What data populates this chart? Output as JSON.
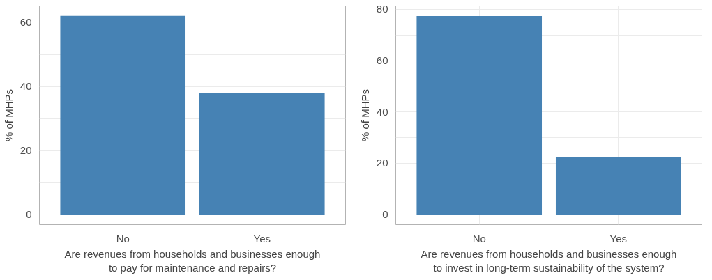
{
  "chart_data": [
    {
      "type": "bar",
      "categories": [
        "No",
        "Yes"
      ],
      "values": [
        62,
        38
      ],
      "color": "#4682b4",
      "xlabel": "Are revenues from households and businesses enough\nto pay for maintenance and repairs?",
      "ylabel": "% of MHPs",
      "ylim": [
        -3.1,
        65.1
      ],
      "yticks": [
        0,
        {
          "value": 10,
          "label": null
        },
        20,
        {
          "value": 30,
          "label": null
        },
        40,
        {
          "value": 50,
          "label": null
        },
        60
      ],
      "grid": true
    },
    {
      "type": "bar",
      "categories": [
        "No",
        "Yes"
      ],
      "values": [
        77.4,
        22.6
      ],
      "color": "#4682b4",
      "xlabel": "Are revenues from households and businesses enough\nto invest in long-term sustainability of the system?",
      "ylabel": "% of MHPs",
      "ylim": [
        -3.87,
        81.3
      ],
      "yticks": [
        0,
        {
          "value": 10,
          "label": null
        },
        20,
        {
          "value": 30,
          "label": null
        },
        40,
        {
          "value": 50,
          "label": null
        },
        60,
        {
          "value": 70,
          "label": null
        },
        80
      ],
      "grid": true
    }
  ]
}
